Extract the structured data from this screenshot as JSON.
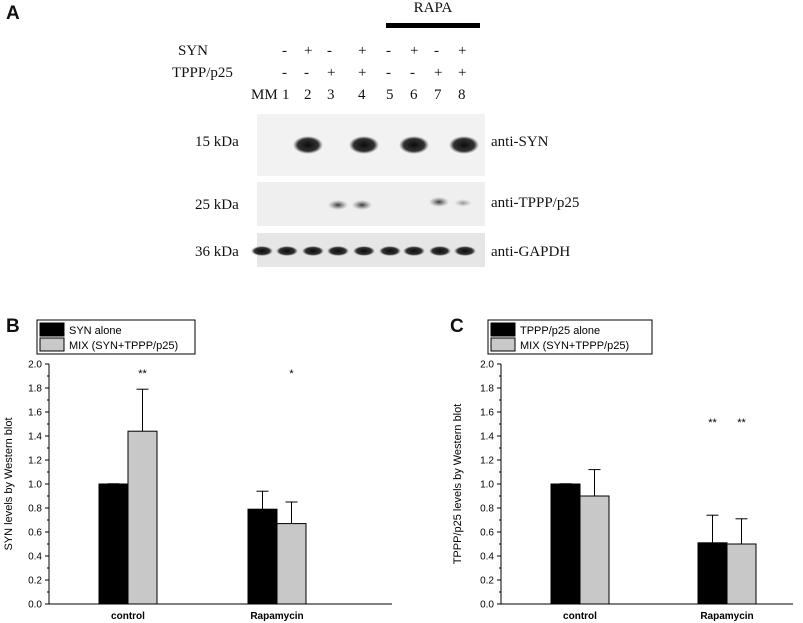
{
  "panel_a": {
    "letter": "A",
    "treatment_label": "RAPA",
    "rows": [
      {
        "label": "SYN",
        "signs": [
          "-",
          "+",
          "-",
          "+",
          "-",
          "+",
          "-",
          "+"
        ]
      },
      {
        "label": "TPPP/p25",
        "signs": [
          "-",
          "-",
          "+",
          "+",
          "-",
          "-",
          "+",
          "+"
        ]
      }
    ],
    "lane_header": "MM",
    "lanes": [
      "1",
      "2",
      "3",
      "4",
      "5",
      "6",
      "7",
      "8"
    ],
    "blots": [
      {
        "mw": "15 kDa",
        "antibody": "anti-SYN"
      },
      {
        "mw": "25 kDa",
        "antibody": "anti-TPPP/p25"
      },
      {
        "mw": "36 kDa",
        "antibody": "anti-GAPDH"
      }
    ]
  },
  "chart_data": [
    {
      "panel": "B",
      "type": "bar",
      "categories": [
        "control",
        "Rapamycin"
      ],
      "ylabel": "SYN levels by Western blot",
      "xlabel": "",
      "ylim": [
        0,
        2.0
      ],
      "yticks": [
        "0.0",
        "0.2",
        "0.4",
        "0.6",
        "0.8",
        "1.0",
        "1.2",
        "1.4",
        "1.6",
        "1.8",
        "2.0"
      ],
      "series": [
        {
          "name": "SYN alone",
          "color": "#000000",
          "values": [
            1.0,
            0.79
          ],
          "errors": [
            0.0,
            0.15
          ],
          "sig": [
            "",
            ""
          ]
        },
        {
          "name": "MIX (SYN+TPPP/p25)",
          "color": "#c8c8c8",
          "values": [
            1.44,
            0.67
          ],
          "errors": [
            0.35,
            0.18
          ],
          "sig": [
            "**",
            "*"
          ]
        }
      ]
    },
    {
      "panel": "C",
      "type": "bar",
      "categories": [
        "control",
        "Rapamycin"
      ],
      "ylabel": "TPPP/p25 levels by Western blot",
      "xlabel": "",
      "ylim": [
        0,
        2.0
      ],
      "yticks": [
        "0.0",
        "0.2",
        "0.4",
        "0.6",
        "0.8",
        "1.0",
        "1.2",
        "1.4",
        "1.6",
        "1.8",
        "2.0"
      ],
      "series": [
        {
          "name": "TPPP/p25 alone",
          "color": "#000000",
          "values": [
            1.0,
            0.51
          ],
          "errors": [
            0.0,
            0.23
          ],
          "sig": [
            "",
            "**"
          ]
        },
        {
          "name": "MIX (SYN+TPPP/p25)",
          "color": "#c8c8c8",
          "values": [
            0.9,
            0.5
          ],
          "errors": [
            0.22,
            0.21
          ],
          "sig": [
            "",
            "**"
          ]
        }
      ]
    }
  ]
}
